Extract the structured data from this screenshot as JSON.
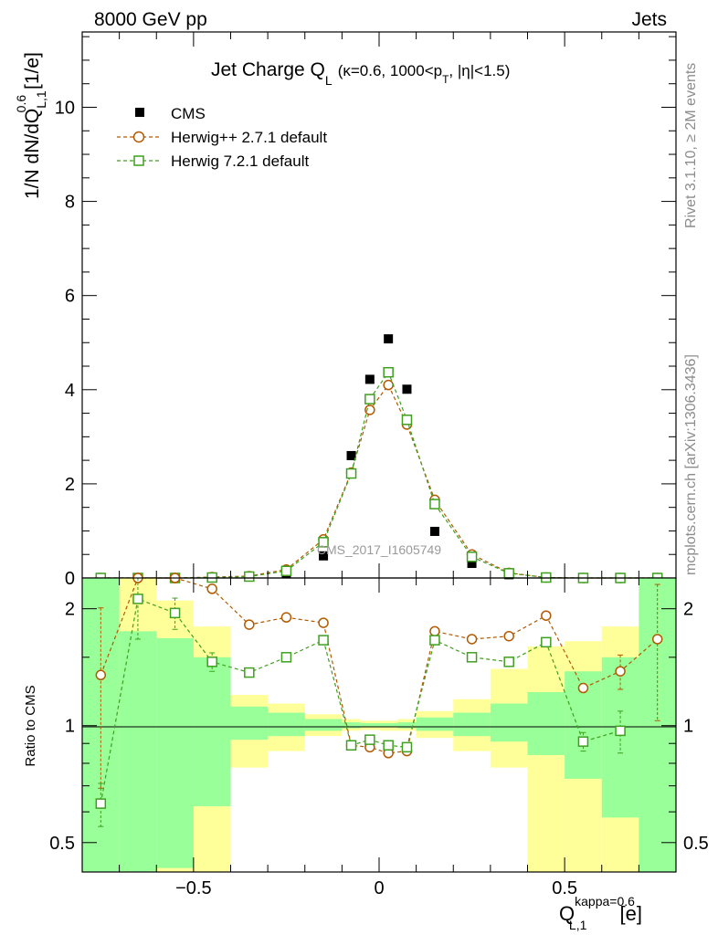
{
  "header": {
    "energy_label": "8000 GeV pp",
    "process_label": "Jets",
    "side_rivet": "Rivet 3.1.10, ≥ 2M events",
    "side_url": "mcplots.cern.ch [arXiv:1306.3436]"
  },
  "chart_data": [
    {
      "panel": "main",
      "type": "scatter",
      "title": "Jet Charge Q",
      "title_sub": "L",
      "title_cuts": "(κ=0.6, 1000<p",
      "title_cuts_sub": "T",
      "title_cuts_end": ", |η|<1.5)",
      "ylabel": "1/N dN/dQ",
      "ylabel_sup": "0.6",
      "ylabel_sub": "L,1",
      "ylabel_unit": " [1/e]",
      "watermark": "CMS_2017_I1605749",
      "xlim": [
        -0.8,
        0.8
      ],
      "ylim": [
        0,
        11.6
      ],
      "yticks": [
        {
          "v": 0,
          "label": "0"
        },
        {
          "v": 2,
          "label": "2"
        },
        {
          "v": 4,
          "label": "4"
        },
        {
          "v": 6,
          "label": "6"
        },
        {
          "v": 8,
          "label": "8"
        },
        {
          "v": 10,
          "label": "10"
        }
      ],
      "legend_position": "top-left",
      "x": [
        -0.75,
        -0.65,
        -0.55,
        -0.45,
        -0.35,
        -0.25,
        -0.15,
        -0.075,
        -0.025,
        0.025,
        0.075,
        0.15,
        0.25,
        0.35,
        0.45,
        0.55,
        0.65,
        0.75
      ],
      "series": [
        {
          "name": "CMS",
          "color": "#000000",
          "marker": "filled-square",
          "values": [
            0.0,
            0.0,
            0.0,
            0.01,
            0.02,
            0.1,
            0.47,
            2.6,
            4.22,
            5.08,
            4.01,
            0.99,
            0.31,
            0.07,
            0.01,
            0.0,
            0.0,
            0.0
          ]
        },
        {
          "name": "Herwig++ 2.7.1 default",
          "color": "#b35900",
          "marker": "open-circle",
          "values": [
            0.0,
            0.0,
            0.0,
            0.02,
            0.04,
            0.18,
            0.82,
            2.24,
            3.57,
            4.1,
            3.26,
            1.66,
            0.5,
            0.11,
            0.01,
            0.0,
            0.0,
            0.0
          ]
        },
        {
          "name": "Herwig 7.2.1 default",
          "color": "#3f9f1f",
          "marker": "open-square",
          "values": [
            0.0,
            0.0,
            0.0,
            0.01,
            0.03,
            0.15,
            0.76,
            2.22,
            3.8,
            4.37,
            3.36,
            1.57,
            0.45,
            0.1,
            0.01,
            0.0,
            0.0,
            0.0
          ]
        }
      ]
    },
    {
      "panel": "ratio",
      "type": "line",
      "ylabel": "Ratio to CMS",
      "xlabel": "Q",
      "xlabel_sup": "kappa=0.6",
      "xlabel_sub": "L,1",
      "xlabel_unit": " [e]",
      "yscale": "log",
      "ylim": [
        0.42,
        2.4
      ],
      "yticks": [
        {
          "v": 0.5,
          "label": "0.5"
        },
        {
          "v": 1,
          "label": "1"
        },
        {
          "v": 2,
          "label": "2"
        }
      ],
      "xticks": [
        {
          "v": -0.5,
          "label": "−0.5"
        },
        {
          "v": 0,
          "label": "0"
        },
        {
          "v": 0.5,
          "label": "0.5"
        }
      ],
      "x": [
        -0.75,
        -0.65,
        -0.55,
        -0.45,
        -0.35,
        -0.25,
        -0.15,
        -0.075,
        -0.025,
        0.025,
        0.075,
        0.15,
        0.25,
        0.35,
        0.45,
        0.55,
        0.65,
        0.75
      ],
      "band_edges": [
        -0.8,
        -0.7,
        -0.6,
        -0.5,
        -0.4,
        -0.3,
        -0.2,
        -0.1,
        -0.05,
        0.0,
        0.05,
        0.1,
        0.2,
        0.3,
        0.4,
        0.5,
        0.6,
        0.7,
        0.8
      ],
      "bands": [
        {
          "name": "total uncertainty",
          "color": "#ffff99",
          "lower": [
            0.42,
            0.42,
            0.42,
            0.42,
            0.78,
            0.86,
            0.94,
            0.97,
            0.975,
            0.97,
            0.97,
            0.93,
            0.86,
            0.78,
            0.42,
            0.42,
            0.42,
            0.42
          ],
          "upper": [
            2.4,
            2.4,
            2.1,
            1.8,
            1.2,
            1.14,
            1.07,
            1.04,
            1.03,
            1.03,
            1.04,
            1.09,
            1.17,
            1.4,
            1.6,
            1.65,
            1.8,
            2.4
          ]
        },
        {
          "name": "statistical uncertainty",
          "color": "#99ff99",
          "lower": [
            0.42,
            0.42,
            0.43,
            0.62,
            0.92,
            0.94,
            0.97,
            0.985,
            0.99,
            0.99,
            0.985,
            0.97,
            0.94,
            0.91,
            0.84,
            0.73,
            0.58,
            0.42
          ],
          "upper": [
            2.4,
            1.75,
            1.68,
            1.5,
            1.12,
            1.08,
            1.04,
            1.02,
            1.015,
            1.015,
            1.02,
            1.05,
            1.08,
            1.14,
            1.22,
            1.38,
            1.5,
            2.4
          ]
        }
      ],
      "series": [
        {
          "name": "Herwig++ 2.7.1 default",
          "color": "#b35900",
          "marker": "open-circle",
          "values": [
            1.35,
            2.4,
            2.4,
            2.25,
            1.82,
            1.9,
            1.84,
            0.89,
            0.88,
            0.85,
            0.86,
            1.75,
            1.67,
            1.7,
            1.92,
            1.25,
            1.38,
            1.67
          ],
          "err": [
            0.66,
            0,
            0,
            0,
            0,
            0,
            0,
            0,
            0,
            0,
            0,
            0,
            0,
            0,
            0,
            0,
            0.14,
            0.64
          ]
        },
        {
          "name": "Herwig 7.2.1 default",
          "color": "#3f9f1f",
          "marker": "open-square",
          "values": [
            0.63,
            2.12,
            1.95,
            1.46,
            1.37,
            1.5,
            1.66,
            0.89,
            0.92,
            0.89,
            0.88,
            1.66,
            1.5,
            1.46,
            1.64,
            0.91,
            0.97,
            null
          ],
          "err": [
            0.08,
            0.45,
            0.18,
            0.08,
            0,
            0,
            0,
            0,
            0,
            0,
            0,
            0,
            0,
            0,
            0,
            0.05,
            0.12,
            0
          ]
        }
      ]
    }
  ]
}
